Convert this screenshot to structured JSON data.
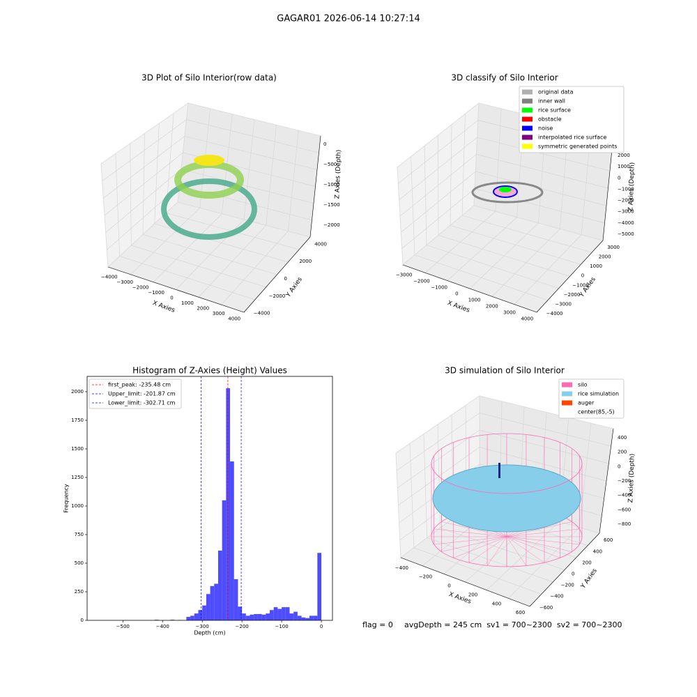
{
  "title": "GAGAR01 2026-06-14 10:27:14",
  "footer": [
    "flag = 0",
    "avgDepth = 245 cm  sv1 = 700~2300  sv2 = 700~2300"
  ],
  "chart_data": [
    {
      "type": "scatter3d",
      "title": "3D Plot of Silo Interior(row data)",
      "xlabel": "X Axies",
      "ylabel": "Y Axies",
      "zlabel": "Z Axies (Depth)",
      "xticks": [
        "−4000",
        "−3000",
        "−2000",
        "−1000",
        "0",
        "1000",
        "2000",
        "3000",
        "4000"
      ],
      "yticks": [
        "−4000",
        "−2000",
        "0",
        "2000",
        "4000"
      ],
      "zticks": [
        "0",
        "−500",
        "−1000",
        "−1500",
        "−2000"
      ]
    },
    {
      "type": "scatter3d",
      "title": "3D classify of Silo Interior",
      "xlabel": "X Axies",
      "ylabel": "Y Axies",
      "zlabel": "Z Axies (Depth)",
      "xticks": [
        "−3000",
        "−2000",
        "−1000",
        "0",
        "1000",
        "2000",
        "3000",
        "4000"
      ],
      "yticks": [
        "−4000",
        "−3000",
        "−2000",
        "−1000",
        "0",
        "1000",
        "2000",
        "3000"
      ],
      "zticks": [
        "2000",
        "1000",
        "0",
        "−1000",
        "−2000",
        "−3000",
        "−4000",
        "−5000"
      ],
      "legend": [
        {
          "name": "original data",
          "color": "#b0b0b0"
        },
        {
          "name": "inner wall",
          "color": "#808080"
        },
        {
          "name": "rice surface",
          "color": "#00ff00"
        },
        {
          "name": "obstacle",
          "color": "#ff0000"
        },
        {
          "name": "noise",
          "color": "#0000ff"
        },
        {
          "name": "interpolated rice surface",
          "color": "#800080"
        },
        {
          "name": "symmetric generated points",
          "color": "#ffff00"
        }
      ]
    },
    {
      "type": "histogram",
      "title": "Histogram of Z-Axies (Height) Values",
      "xlabel": "Depth (cm)",
      "ylabel": "Frequency",
      "color": "#4d4dff",
      "bins": [
        -580,
        -570,
        -560,
        -550,
        -540,
        -530,
        -520,
        -510,
        -500,
        -490,
        -480,
        -470,
        -460,
        -450,
        -440,
        -430,
        -420,
        -410,
        -400,
        -390,
        -380,
        -370,
        -360,
        -350,
        -340,
        -330,
        -320,
        -310,
        -300,
        -290,
        -280,
        -270,
        -260,
        -250,
        -240,
        -230,
        -220,
        -210,
        -200,
        -190,
        -180,
        -170,
        -160,
        -150,
        -140,
        -130,
        -120,
        -110,
        -100,
        -90,
        -80,
        -70,
        -60,
        -50,
        -40,
        -30,
        -20,
        -10,
        0
      ],
      "values": [
        0,
        0,
        0,
        0,
        0,
        0,
        0,
        0,
        0,
        0,
        0,
        0,
        0,
        0,
        0,
        0,
        5,
        0,
        0,
        0,
        5,
        0,
        3,
        0,
        30,
        40,
        60,
        90,
        130,
        230,
        300,
        320,
        610,
        1050,
        2030,
        1390,
        360,
        120,
        60,
        40,
        50,
        55,
        55,
        50,
        60,
        90,
        115,
        100,
        115,
        115,
        60,
        75,
        40,
        25,
        20,
        40,
        40,
        590
      ],
      "xlim": [
        -590,
        28
      ],
      "ylim": [
        0,
        2134
      ],
      "xticks": [
        {
          "value": -500,
          "label": "−500"
        },
        {
          "value": -400,
          "label": "−400"
        },
        {
          "value": -300,
          "label": "−300"
        },
        {
          "value": -200,
          "label": "−200"
        },
        {
          "value": -100,
          "label": "−100"
        },
        0
      ],
      "yticks": [
        0,
        250,
        500,
        750,
        1000,
        1250,
        1500,
        1750,
        2000
      ],
      "lines": [
        {
          "name": "first_peak: -235.48 cm",
          "value": -235.48,
          "color": "#ff0000"
        },
        {
          "name": "Upper_limit: -201.87 cm",
          "value": -201.87,
          "color": "#0000ff"
        },
        {
          "name": "Lower_limit: -302.71 cm",
          "value": -302.71,
          "color": "#0000ff"
        }
      ],
      "legend_loc": "upper left"
    },
    {
      "type": "surface3d",
      "title": "3D simulation of Silo Interior",
      "xlabel": "X Axies",
      "ylabel": "Y Axies",
      "zlabel": "Z Axies (Depth)",
      "xticks": [
        "−400",
        "−200",
        "0",
        "200",
        "400",
        "600"
      ],
      "yticks": [
        "−600",
        "−400",
        "−200",
        "0",
        "200",
        "400",
        "600"
      ],
      "zticks": [
        "400",
        "200",
        "0",
        "−200",
        "−400",
        "−600",
        "−800"
      ],
      "legend": [
        {
          "name": "silo",
          "color": "#ff69b4"
        },
        {
          "name": "rice simulation",
          "color": "#87ceeb"
        },
        {
          "name": "auger",
          "color": "#ff4500"
        },
        {
          "name": "center(85,-5)",
          "color": null
        }
      ]
    }
  ]
}
